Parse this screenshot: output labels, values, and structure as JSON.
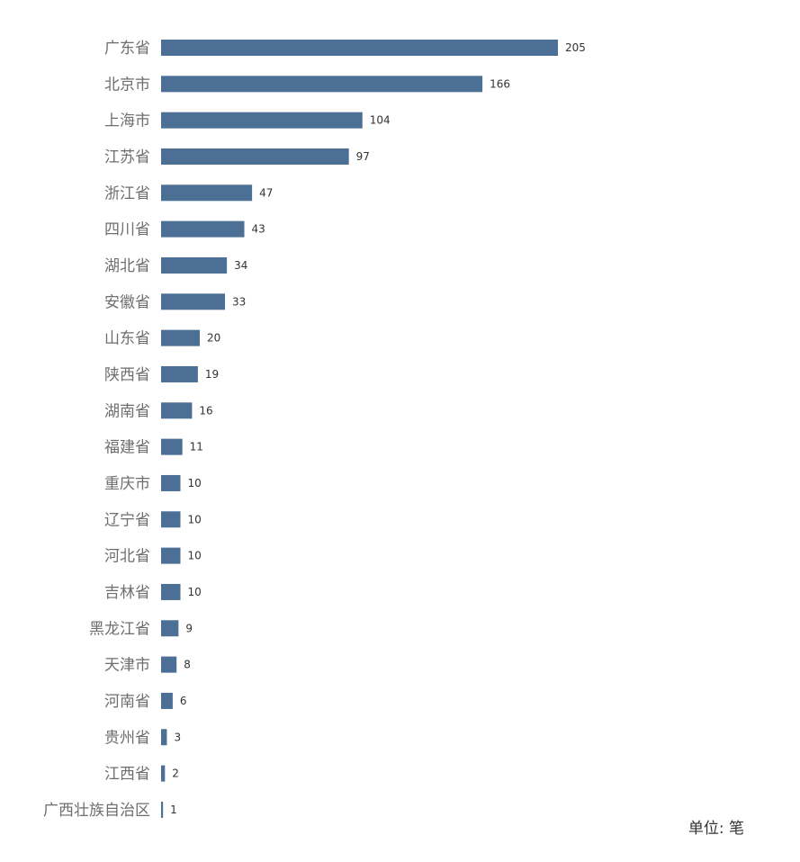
{
  "chart_data": {
    "type": "bar",
    "orientation": "horizontal",
    "title": "",
    "unit_label": "单位: 笔",
    "categories": [
      "广东省",
      "北京市",
      "上海市",
      "江苏省",
      "浙江省",
      "四川省",
      "湖北省",
      "安徽省",
      "山东省",
      "陕西省",
      "湖南省",
      "福建省",
      "重庆市",
      "辽宁省",
      "河北省",
      "吉林省",
      "黑龙江省",
      "天津市",
      "河南省",
      "贵州省",
      "江西省",
      "广西壮族自治区"
    ],
    "values": [
      205,
      166,
      104,
      97,
      47,
      43,
      34,
      33,
      20,
      19,
      16,
      11,
      10,
      10,
      10,
      10,
      9,
      8,
      6,
      3,
      2,
      1
    ],
    "xlim": [
      0,
      220
    ],
    "grid": false,
    "legend": "none",
    "colors": {
      "bar": "#4c6f95",
      "category_text": "#6e6e6e",
      "value_text": "#333333"
    }
  }
}
